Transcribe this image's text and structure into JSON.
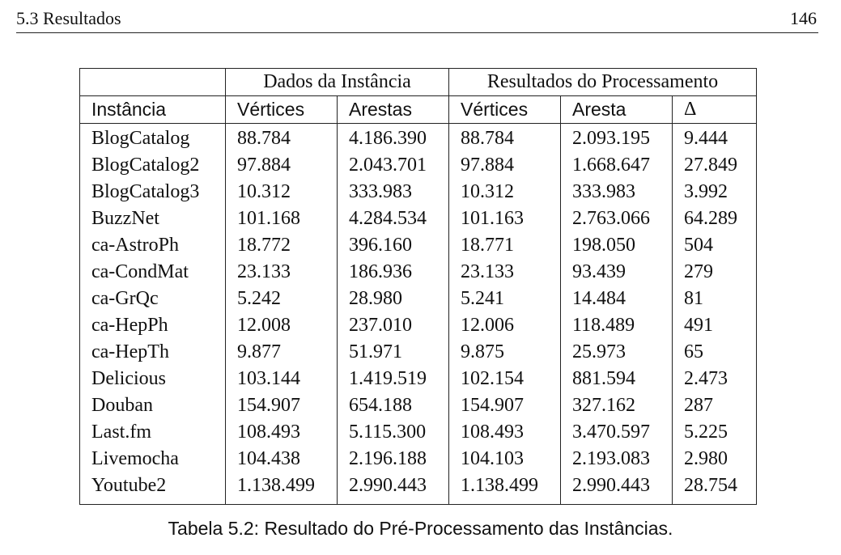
{
  "header": {
    "section": "5.3  Resultados",
    "page_number": "146"
  },
  "table": {
    "group_headers": [
      "Dados da Instância",
      "Resultados do Processamento"
    ],
    "columns": [
      "Instância",
      "Vértices",
      "Arestas",
      "Vértices",
      "Aresta",
      "Δ"
    ],
    "rows": [
      [
        "BlogCatalog",
        "88.784",
        "4.186.390",
        "88.784",
        "2.093.195",
        "9.444"
      ],
      [
        "BlogCatalog2",
        "97.884",
        "2.043.701",
        "97.884",
        "1.668.647",
        "27.849"
      ],
      [
        "BlogCatalog3",
        "10.312",
        "333.983",
        "10.312",
        "333.983",
        "3.992"
      ],
      [
        "BuzzNet",
        "101.168",
        "4.284.534",
        "101.163",
        "2.763.066",
        "64.289"
      ],
      [
        "ca-AstroPh",
        "18.772",
        "396.160",
        "18.771",
        "198.050",
        "504"
      ],
      [
        "ca-CondMat",
        "23.133",
        "186.936",
        "23.133",
        "93.439",
        "279"
      ],
      [
        "ca-GrQc",
        "5.242",
        "28.980",
        "5.241",
        "14.484",
        "81"
      ],
      [
        "ca-HepPh",
        "12.008",
        "237.010",
        "12.006",
        "118.489",
        "491"
      ],
      [
        "ca-HepTh",
        "9.877",
        "51.971",
        "9.875",
        "25.973",
        "65"
      ],
      [
        "Delicious",
        "103.144",
        "1.419.519",
        "102.154",
        "881.594",
        "2.473"
      ],
      [
        "Douban",
        "154.907",
        "654.188",
        "154.907",
        "327.162",
        "287"
      ],
      [
        "Last.fm",
        "108.493",
        "5.115.300",
        "108.493",
        "3.470.597",
        "5.225"
      ],
      [
        "Livemocha",
        "104.438",
        "2.196.188",
        "104.103",
        "2.193.083",
        "2.980"
      ],
      [
        "Youtube2",
        "1.138.499",
        "2.990.443",
        "1.138.499",
        "2.990.443",
        "28.754"
      ]
    ]
  },
  "caption": "Tabela 5.2: Resultado do Pré-Processamento das Instâncias."
}
